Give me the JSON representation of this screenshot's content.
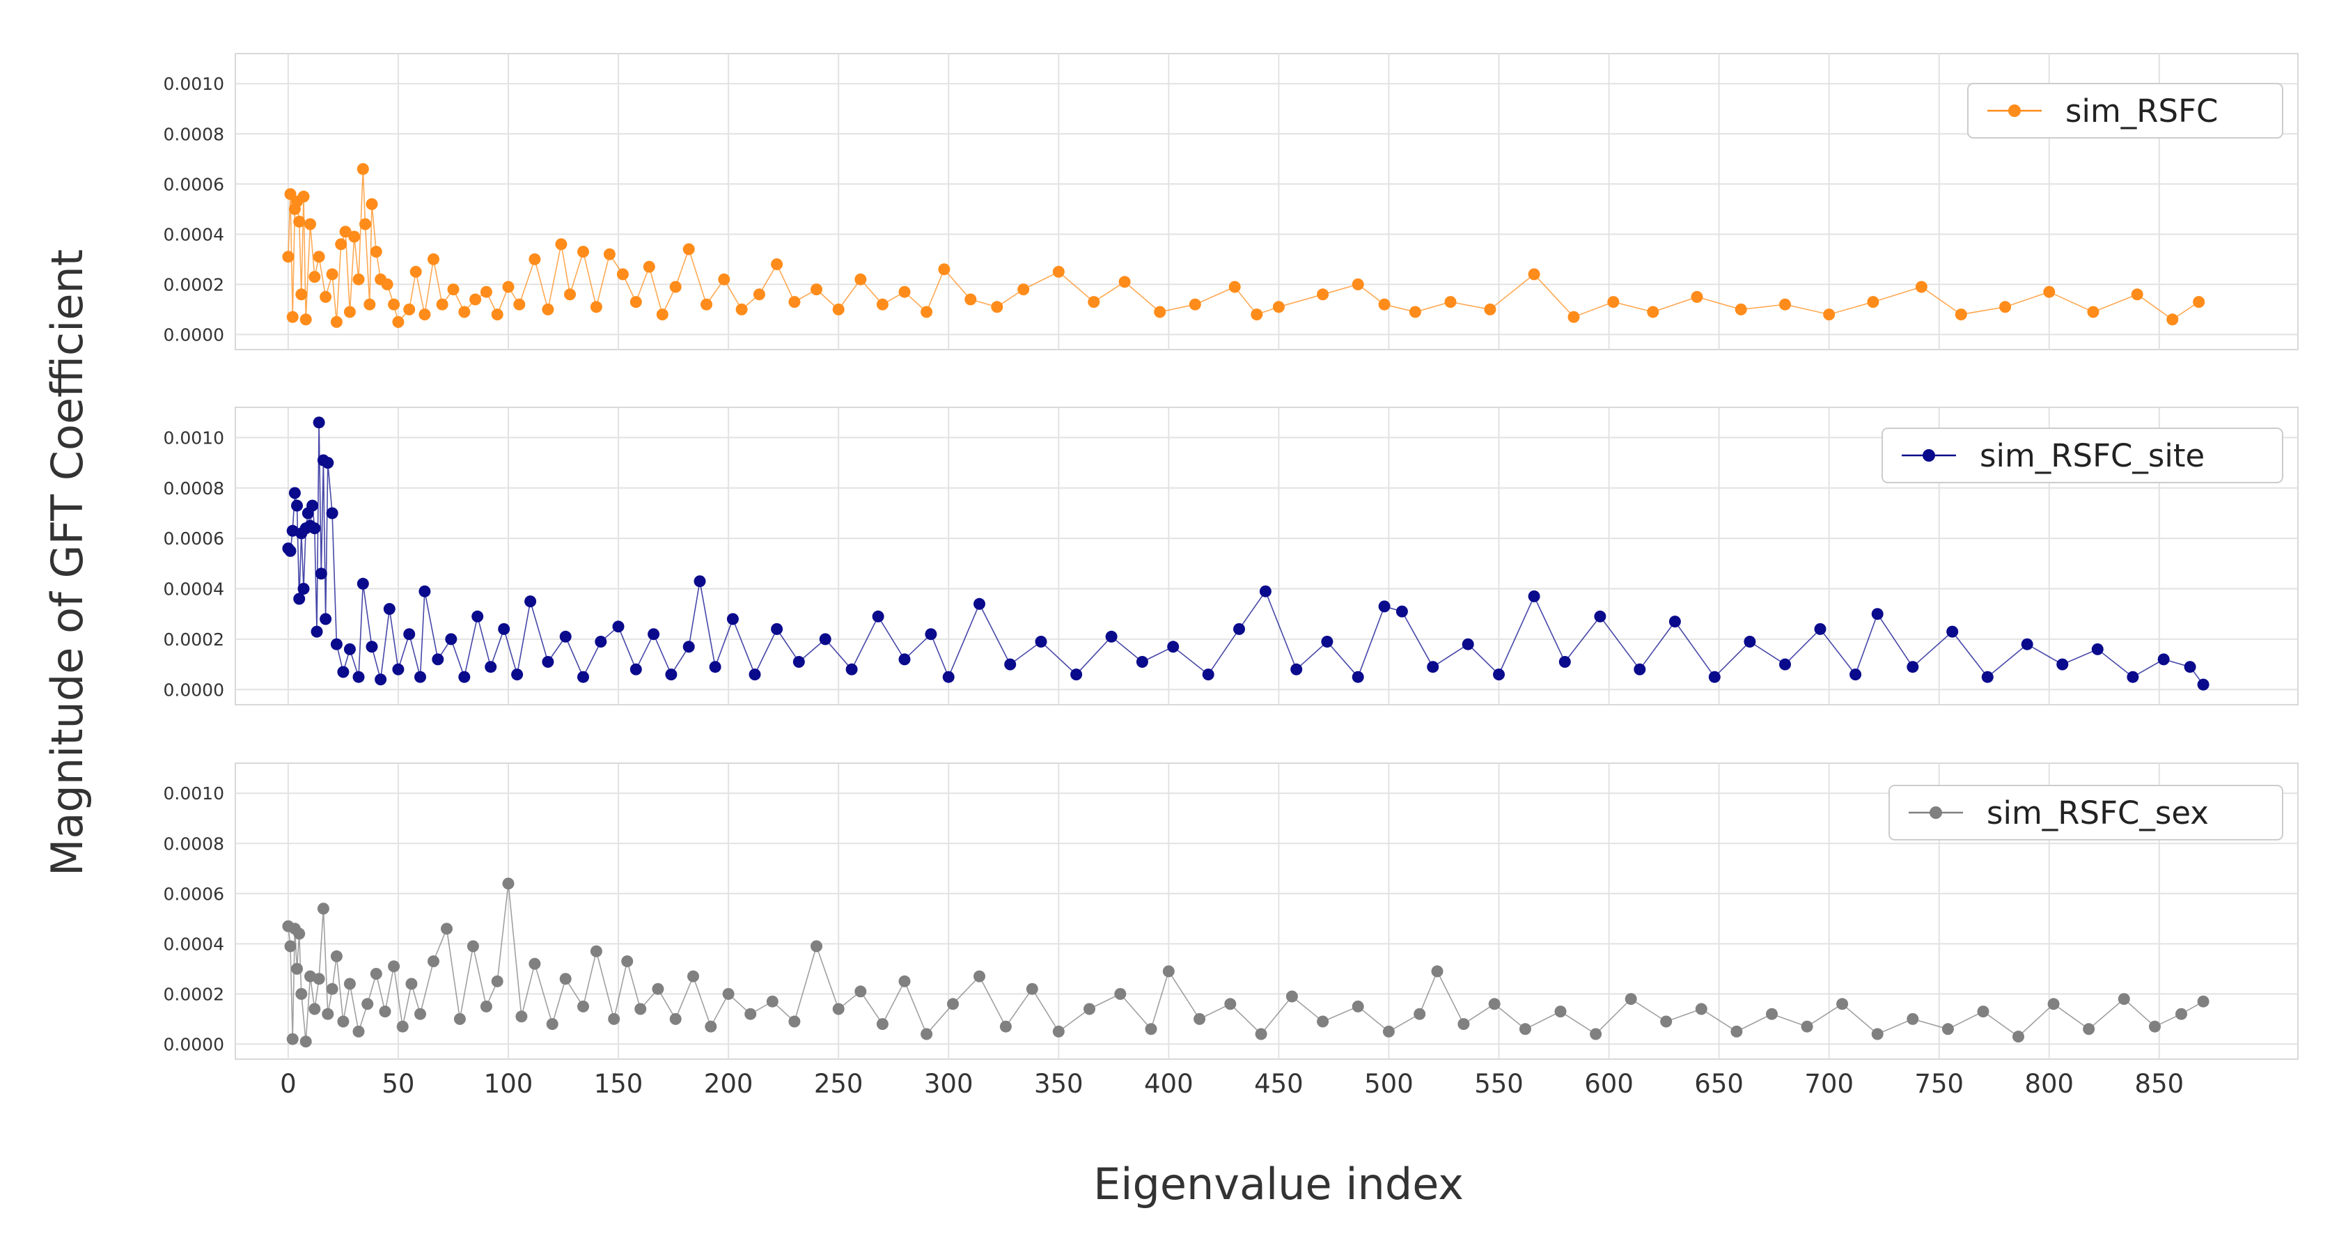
{
  "chart_data": {
    "type": "line",
    "ylabel": "Magnitude of GFT Coefficient",
    "xlabel": "Eigenvalue index",
    "xlim": [
      -24,
      913
    ],
    "ylim": [
      -6e-05,
      0.00112
    ],
    "grid": true,
    "legend_position": "top-right",
    "x_ticks": [
      0,
      50,
      100,
      150,
      200,
      250,
      300,
      350,
      400,
      450,
      500,
      550,
      600,
      650,
      700,
      750,
      800,
      850
    ],
    "y_ticks": [
      0.0,
      0.0002,
      0.0004,
      0.0006,
      0.0008,
      0.001
    ],
    "y_tick_labels": [
      "0.0000",
      "0.0002",
      "0.0004",
      "0.0006",
      "0.0008",
      "0.0010"
    ],
    "n_points": 871,
    "panels": [
      {
        "series": {
          "name": "sim_RSFC",
          "color": "#ff8c1a",
          "marker": "circle",
          "x": [
            0,
            1,
            2,
            3,
            4,
            5,
            6,
            7,
            8,
            10,
            12,
            14,
            17,
            20,
            22,
            24,
            26,
            28,
            30,
            32,
            34,
            35,
            37,
            38,
            40,
            42,
            45,
            48,
            50,
            55,
            58,
            62,
            66,
            70,
            75,
            80,
            85,
            90,
            95,
            100,
            105,
            112,
            118,
            124,
            128,
            134,
            140,
            146,
            152,
            158,
            164,
            170,
            176,
            182,
            190,
            198,
            206,
            214,
            222,
            230,
            240,
            250,
            260,
            270,
            280,
            290,
            298,
            310,
            322,
            334,
            350,
            366,
            380,
            396,
            412,
            430,
            440,
            450,
            470,
            486,
            498,
            512,
            528,
            546,
            566,
            584,
            602,
            620,
            640,
            660,
            680,
            700,
            720,
            742,
            760,
            780,
            800,
            820,
            840,
            856,
            868
          ],
          "values": [
            0.00031,
            0.00056,
            7e-05,
            0.0005,
            0.00053,
            0.00045,
            0.00016,
            0.00055,
            6e-05,
            0.00044,
            0.00023,
            0.00031,
            0.00015,
            0.00024,
            5e-05,
            0.00036,
            0.00041,
            9e-05,
            0.00039,
            0.00022,
            0.00066,
            0.00044,
            0.00012,
            0.00052,
            0.00033,
            0.00022,
            0.0002,
            0.00012,
            5e-05,
            0.0001,
            0.00025,
            8e-05,
            0.0003,
            0.00012,
            0.00018,
            9e-05,
            0.00014,
            0.00017,
            8e-05,
            0.00019,
            0.00012,
            0.0003,
            0.0001,
            0.00036,
            0.00016,
            0.00033,
            0.00011,
            0.00032,
            0.00024,
            0.00013,
            0.00027,
            8e-05,
            0.00019,
            0.00034,
            0.00012,
            0.00022,
            0.0001,
            0.00016,
            0.00028,
            0.00013,
            0.00018,
            0.0001,
            0.00022,
            0.00012,
            0.00017,
            9e-05,
            0.00026,
            0.00014,
            0.00011,
            0.00018,
            0.00025,
            0.00013,
            0.00021,
            9e-05,
            0.00012,
            0.00019,
            8e-05,
            0.00011,
            0.00016,
            0.0002,
            0.00012,
            9e-05,
            0.00013,
            0.0001,
            0.00024,
            7e-05,
            0.00013,
            9e-05,
            0.00015,
            0.0001,
            0.00012,
            8e-05,
            0.00013,
            0.00019,
            8e-05,
            0.00011,
            0.00017,
            9e-05,
            0.00016,
            6e-05,
            0.00013
          ]
        }
      },
      {
        "series": {
          "name": "sim_RSFC_site",
          "color": "#0a0a8c",
          "marker": "circle",
          "x": [
            0,
            1,
            2,
            3,
            4,
            5,
            6,
            7,
            8,
            9,
            10,
            11,
            12,
            13,
            14,
            15,
            16,
            17,
            18,
            20,
            22,
            25,
            28,
            32,
            34,
            38,
            42,
            46,
            50,
            55,
            60,
            62,
            68,
            74,
            80,
            86,
            92,
            98,
            104,
            110,
            118,
            126,
            134,
            142,
            150,
            158,
            166,
            174,
            182,
            187,
            194,
            202,
            212,
            222,
            232,
            244,
            256,
            268,
            280,
            292,
            300,
            314,
            328,
            342,
            358,
            374,
            388,
            402,
            418,
            432,
            444,
            458,
            472,
            486,
            498,
            506,
            520,
            536,
            550,
            566,
            580,
            596,
            614,
            630,
            648,
            664,
            680,
            696,
            712,
            722,
            738,
            756,
            772,
            790,
            806,
            822,
            838,
            852,
            864,
            870
          ],
          "values": [
            0.00056,
            0.00055,
            0.00063,
            0.00078,
            0.00073,
            0.00036,
            0.00062,
            0.0004,
            0.00064,
            0.0007,
            0.00065,
            0.00073,
            0.00064,
            0.00023,
            0.00106,
            0.00046,
            0.00091,
            0.00028,
            0.0009,
            0.0007,
            0.00018,
            7e-05,
            0.00016,
            5e-05,
            0.00042,
            0.00017,
            4e-05,
            0.00032,
            8e-05,
            0.00022,
            5e-05,
            0.00039,
            0.00012,
            0.0002,
            5e-05,
            0.00029,
            9e-05,
            0.00024,
            6e-05,
            0.00035,
            0.00011,
            0.00021,
            5e-05,
            0.00019,
            0.00025,
            8e-05,
            0.00022,
            6e-05,
            0.00017,
            0.00043,
            9e-05,
            0.00028,
            6e-05,
            0.00024,
            0.00011,
            0.0002,
            8e-05,
            0.00029,
            0.00012,
            0.00022,
            5e-05,
            0.00034,
            0.0001,
            0.00019,
            6e-05,
            0.00021,
            0.00011,
            0.00017,
            6e-05,
            0.00024,
            0.00039,
            8e-05,
            0.00019,
            5e-05,
            0.00033,
            0.00031,
            9e-05,
            0.00018,
            6e-05,
            0.00037,
            0.00011,
            0.00029,
            8e-05,
            0.00027,
            5e-05,
            0.00019,
            0.0001,
            0.00024,
            6e-05,
            0.0003,
            9e-05,
            0.00023,
            5e-05,
            0.00018,
            0.0001,
            0.00016,
            5e-05,
            0.00012,
            9e-05,
            2e-05
          ]
        }
      },
      {
        "series": {
          "name": "sim_RSFC_sex",
          "color": "#808080",
          "marker": "circle",
          "x": [
            0,
            1,
            2,
            3,
            4,
            5,
            6,
            8,
            10,
            12,
            14,
            16,
            18,
            20,
            22,
            25,
            28,
            32,
            36,
            40,
            44,
            48,
            52,
            56,
            60,
            66,
            72,
            78,
            84,
            90,
            95,
            100,
            106,
            112,
            120,
            126,
            134,
            140,
            148,
            154,
            160,
            168,
            176,
            184,
            192,
            200,
            210,
            220,
            230,
            240,
            250,
            260,
            270,
            280,
            290,
            302,
            314,
            326,
            338,
            350,
            364,
            378,
            392,
            400,
            414,
            428,
            442,
            456,
            470,
            486,
            500,
            514,
            522,
            534,
            548,
            562,
            578,
            594,
            610,
            626,
            642,
            658,
            674,
            690,
            706,
            722,
            738,
            754,
            770,
            786,
            802,
            818,
            834,
            848,
            860,
            870
          ],
          "values": [
            0.00047,
            0.00039,
            2e-05,
            0.00046,
            0.0003,
            0.00044,
            0.0002,
            1e-05,
            0.00027,
            0.00014,
            0.00026,
            0.00054,
            0.00012,
            0.00022,
            0.00035,
            9e-05,
            0.00024,
            5e-05,
            0.00016,
            0.00028,
            0.00013,
            0.00031,
            7e-05,
            0.00024,
            0.00012,
            0.00033,
            0.00046,
            0.0001,
            0.00039,
            0.00015,
            0.00025,
            0.00064,
            0.00011,
            0.00032,
            8e-05,
            0.00026,
            0.00015,
            0.00037,
            0.0001,
            0.00033,
            0.00014,
            0.00022,
            0.0001,
            0.00027,
            7e-05,
            0.0002,
            0.00012,
            0.00017,
            9e-05,
            0.00039,
            0.00014,
            0.00021,
            8e-05,
            0.00025,
            4e-05,
            0.00016,
            0.00027,
            7e-05,
            0.00022,
            5e-05,
            0.00014,
            0.0002,
            6e-05,
            0.00029,
            0.0001,
            0.00016,
            4e-05,
            0.00019,
            9e-05,
            0.00015,
            5e-05,
            0.00012,
            0.00029,
            8e-05,
            0.00016,
            6e-05,
            0.00013,
            4e-05,
            0.00018,
            9e-05,
            0.00014,
            5e-05,
            0.00012,
            7e-05,
            0.00016,
            4e-05,
            0.0001,
            6e-05,
            0.00013,
            3e-05,
            0.00016,
            6e-05,
            0.00018,
            7e-05,
            0.00012,
            0.00017
          ]
        }
      }
    ]
  }
}
